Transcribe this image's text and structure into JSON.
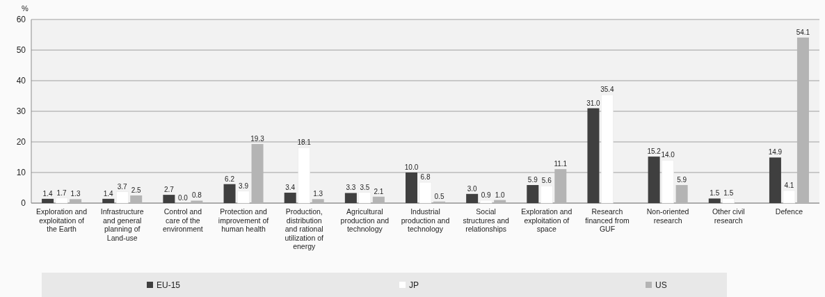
{
  "chart_data": {
    "type": "bar",
    "ylabel": "%",
    "categories": [
      "Exploration and exploitation of the Earth",
      "Infrastructure and general planning of Land-use",
      "Control and care of the environment",
      "Protection and improvement of human health",
      "Production, distribution and rational utilization of energy",
      "Agricultural production and technology",
      "Industrial production and technology",
      "Social structures and relationships",
      "Exploration and exploitation of space",
      "Research financed from GUF",
      "Non-oriented research",
      "Other civil research",
      "Defence"
    ],
    "series": [
      {
        "name": "EU-15",
        "color": "#3f3f3f",
        "values": [
          1.4,
          1.4,
          2.7,
          6.2,
          3.4,
          3.3,
          10.0,
          3.0,
          5.9,
          31.0,
          15.2,
          1.5,
          14.9
        ],
        "value_labels": [
          "1.4",
          "1.4",
          "2.7",
          "6.2",
          "3.4",
          "3.3",
          "10.0",
          "3.0",
          "5.9",
          "31.0",
          "15.2",
          "1.5",
          "14.9"
        ]
      },
      {
        "name": "JP",
        "color": "#ffffff",
        "values": [
          1.7,
          3.7,
          0.0,
          3.9,
          18.1,
          3.5,
          6.8,
          0.9,
          5.6,
          35.4,
          14.0,
          1.5,
          4.1
        ],
        "value_labels": [
          "1.7",
          "3.7",
          "0.0",
          "3.9",
          "18.1",
          "3.5",
          "6.8",
          "0.9",
          "5.6",
          "35.4",
          "14.0",
          "1.5",
          "4.1"
        ]
      },
      {
        "name": "US",
        "color": "#b4b4b4",
        "values": [
          1.3,
          2.5,
          0.8,
          19.3,
          1.3,
          2.1,
          0.5,
          1.0,
          11.1,
          null,
          5.9,
          null,
          54.1
        ],
        "value_labels": [
          "1.3",
          "2.5",
          "0.8",
          "19.3",
          "1.3",
          "2.1",
          "0.5",
          "1.0",
          "11.1",
          null,
          "5.9",
          null,
          "54.1"
        ]
      }
    ],
    "ylim": [
      0,
      60
    ],
    "yticks": [
      0,
      10,
      20,
      30,
      40,
      50,
      60
    ],
    "grid": "y",
    "legend": "bottom"
  }
}
